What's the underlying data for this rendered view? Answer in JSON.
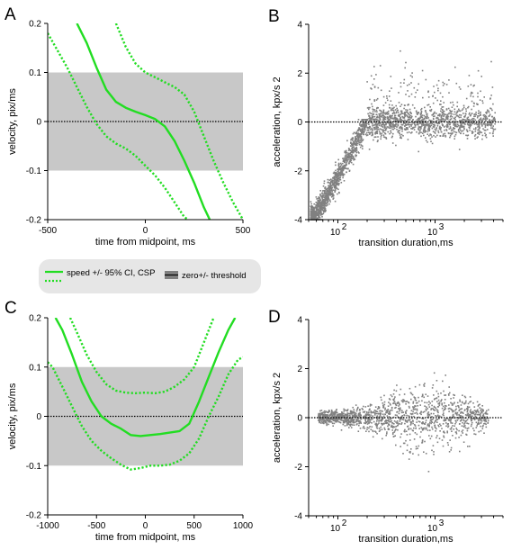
{
  "colors": {
    "green": "#22dd22",
    "gray_points": "#808080",
    "band": "#c8c8c8",
    "legend_bg": "#e6e6e6"
  },
  "legend": {
    "speed_label": "speed +/- 95% CI, CSP",
    "threshold_label": "zero+/- threshold"
  },
  "chart_data": [
    {
      "panel": "A",
      "type": "line",
      "xlabel": "time from midpoint, ms",
      "ylabel": "velocity, pix/ms",
      "xlim": [
        -500,
        500
      ],
      "ylim": [
        -0.2,
        0.2
      ],
      "xticks": [
        -500,
        0,
        500
      ],
      "yticks": [
        -0.2,
        -0.1,
        0,
        0.1,
        0.2
      ],
      "ytick_labels": [
        "-0.2",
        "-0.1",
        "0",
        "0.1",
        "0.2"
      ],
      "threshold_band": [
        -0.1,
        0.1
      ],
      "zero_line": 0,
      "series": [
        {
          "role": "mean",
          "style": "solid",
          "x": [
            -350,
            -300,
            -250,
            -200,
            -150,
            -100,
            -50,
            0,
            50,
            100,
            150,
            200,
            250,
            300,
            330
          ],
          "y": [
            0.2,
            0.16,
            0.11,
            0.065,
            0.04,
            0.028,
            0.02,
            0.013,
            0.005,
            -0.01,
            -0.04,
            -0.08,
            -0.125,
            -0.175,
            -0.2
          ]
        },
        {
          "role": "upper-ci",
          "style": "dotted",
          "x": [
            -150,
            -100,
            -50,
            0,
            50,
            100,
            150,
            200,
            250,
            300,
            350,
            400,
            450,
            500
          ],
          "y": [
            0.2,
            0.152,
            0.118,
            0.1,
            0.09,
            0.08,
            0.07,
            0.055,
            0.02,
            -0.03,
            -0.08,
            -0.125,
            -0.165,
            -0.2
          ]
        },
        {
          "role": "lower-ci",
          "style": "dotted",
          "x": [
            -500,
            -450,
            -400,
            -350,
            -300,
            -250,
            -200,
            -150,
            -100,
            -50,
            0,
            50,
            100,
            150,
            200,
            220
          ],
          "y": [
            0.18,
            0.145,
            0.11,
            0.07,
            0.03,
            -0.005,
            -0.03,
            -0.045,
            -0.055,
            -0.07,
            -0.09,
            -0.11,
            -0.135,
            -0.165,
            -0.195,
            -0.2
          ]
        }
      ]
    },
    {
      "panel": "B",
      "type": "scatter",
      "xlabel": "transition duration,ms",
      "ylabel": "acceleration, kpx/s 2",
      "xscale": "log",
      "xlim": [
        50,
        5000
      ],
      "ylim": [
        -4,
        4
      ],
      "xticks": [
        100,
        1000
      ],
      "xtick_labels": [
        "10",
        "10"
      ],
      "xtick_exponents": [
        "2",
        "3"
      ],
      "yticks": [
        -4,
        -2,
        0,
        2,
        4
      ],
      "zero_line": 0,
      "n_points": 2600,
      "point_cloud": "dense band rising from -4 near 50 ms to about 0 near 200 ms, then scattered around 0 with wider positive spread at longer durations"
    },
    {
      "panel": "C",
      "type": "line",
      "xlabel": "time from midpoint, ms",
      "ylabel": "velocity, pix/ms",
      "xlim": [
        -1000,
        1000
      ],
      "ylim": [
        -0.2,
        0.2
      ],
      "xticks": [
        -1000,
        -500,
        0,
        500,
        1000
      ],
      "yticks": [
        -0.2,
        -0.1,
        0,
        0.1,
        0.2
      ],
      "ytick_labels": [
        "-0.2",
        "-0.1",
        "0",
        "0.1",
        "0.2"
      ],
      "threshold_band": [
        -0.1,
        0.1
      ],
      "zero_line": 0,
      "series": [
        {
          "role": "mean",
          "style": "solid",
          "x": [
            -920,
            -850,
            -750,
            -650,
            -550,
            -450,
            -350,
            -250,
            -150,
            -50,
            50,
            150,
            250,
            350,
            450,
            550,
            650,
            750,
            850,
            920
          ],
          "y": [
            0.2,
            0.175,
            0.125,
            0.07,
            0.03,
            0.0,
            -0.015,
            -0.025,
            -0.038,
            -0.04,
            -0.038,
            -0.036,
            -0.033,
            -0.03,
            -0.015,
            0.03,
            0.08,
            0.13,
            0.175,
            0.2
          ]
        },
        {
          "role": "upper-ci",
          "style": "dotted",
          "x": [
            -770,
            -700,
            -600,
            -500,
            -400,
            -300,
            -200,
            -100,
            0,
            100,
            200,
            300,
            400,
            500,
            600,
            700
          ],
          "y": [
            0.2,
            0.17,
            0.125,
            0.09,
            0.065,
            0.052,
            0.048,
            0.047,
            0.048,
            0.047,
            0.05,
            0.06,
            0.075,
            0.1,
            0.15,
            0.2
          ]
        },
        {
          "role": "lower-ci",
          "style": "dotted",
          "x": [
            -1000,
            -950,
            -850,
            -750,
            -650,
            -550,
            -450,
            -350,
            -250,
            -150,
            -50,
            50,
            150,
            250,
            350,
            450,
            550,
            650,
            750,
            850,
            950,
            1000
          ],
          "y": [
            0.11,
            0.1,
            0.06,
            0.02,
            -0.02,
            -0.05,
            -0.07,
            -0.085,
            -0.098,
            -0.108,
            -0.105,
            -0.1,
            -0.1,
            -0.098,
            -0.09,
            -0.075,
            -0.045,
            0.0,
            0.04,
            0.085,
            0.115,
            0.12
          ]
        }
      ]
    },
    {
      "panel": "D",
      "type": "scatter",
      "xlabel": "transition duration,ms",
      "ylabel": "acceleration, kpx/s 2",
      "xscale": "log",
      "xlim": [
        50,
        5000
      ],
      "ylim": [
        -4,
        4
      ],
      "xticks": [
        100,
        1000
      ],
      "xtick_labels": [
        "10",
        "10"
      ],
      "xtick_exponents": [
        "2",
        "3"
      ],
      "yticks": [
        -4,
        -2,
        0,
        2,
        4
      ],
      "zero_line": 0,
      "n_points": 1500,
      "point_cloud": "points centered on 0 across durations with spread increasing toward 300–2000 ms"
    }
  ]
}
